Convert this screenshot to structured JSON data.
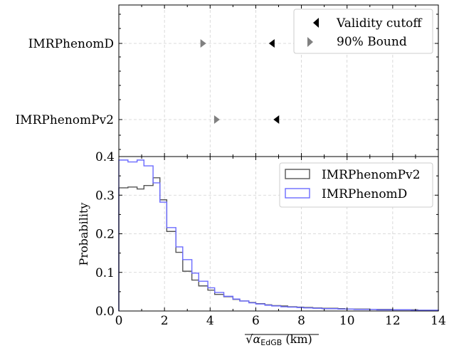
{
  "chart_data": [
    {
      "type": "scatter",
      "categories": [
        "IMRPhenomD",
        "IMRPhenomPv2"
      ],
      "series": [
        {
          "name": "Validity cutoff",
          "marker": "triangle-left",
          "color": "#000000",
          "values": [
            6.7,
            6.9
          ]
        },
        {
          "name": "90% Bound",
          "marker": "triangle-right",
          "color": "#808080",
          "values": [
            3.7,
            4.3
          ]
        }
      ],
      "xlim": [
        0,
        14
      ],
      "grid": true,
      "legend_position": "top-right"
    },
    {
      "type": "histogram",
      "xlabel_parts": {
        "root": "√",
        "symbol": "α",
        "subscript": "EdGB",
        "unit": " (km)"
      },
      "ylabel": "Probability",
      "xlim": [
        0,
        14
      ],
      "ylim": [
        0,
        0.4
      ],
      "xticks": [
        "0",
        "2",
        "4",
        "6",
        "8",
        "10",
        "12",
        "14"
      ],
      "yticks": [
        "0.0",
        "0.1",
        "0.2",
        "0.3",
        "0.4"
      ],
      "bin_edges": [
        0,
        0.4,
        0.8,
        1.1,
        1.5,
        1.8,
        2.1,
        2.5,
        2.8,
        3.2,
        3.5,
        3.9,
        4.2,
        4.6,
        5.0,
        5.3,
        5.7,
        6.0,
        6.4,
        6.7,
        7.1,
        7.4,
        7.8,
        8.1,
        8.5,
        8.9,
        9.2,
        9.6,
        9.9,
        10.3,
        10.6,
        11.0,
        11.3,
        11.7,
        12.0,
        12.4,
        12.8,
        13.1,
        13.5,
        13.8,
        14.0
      ],
      "series": [
        {
          "name": "IMRPhenomPv2",
          "color": "#555555",
          "values": [
            0.319,
            0.321,
            0.316,
            0.325,
            0.345,
            0.288,
            0.206,
            0.152,
            0.103,
            0.08,
            0.065,
            0.054,
            0.043,
            0.037,
            0.03,
            0.026,
            0.022,
            0.019,
            0.016,
            0.014,
            0.013,
            0.011,
            0.01,
            0.009,
            0.008,
            0.007,
            0.007,
            0.006,
            0.005,
            0.005,
            0.005,
            0.004,
            0.004,
            0.004,
            0.003,
            0.003,
            0.003,
            0.002,
            0.002,
            0.002
          ]
        },
        {
          "name": "IMRPhenomD",
          "color": "#6b6bff",
          "values": [
            0.391,
            0.386,
            0.391,
            0.376,
            0.332,
            0.282,
            0.216,
            0.166,
            0.133,
            0.098,
            0.077,
            0.06,
            0.048,
            0.038,
            0.031,
            0.026,
            0.021,
            0.018,
            0.015,
            0.013,
            0.011,
            0.01,
            0.009,
            0.008,
            0.007,
            0.006,
            0.006,
            0.005,
            0.005,
            0.004,
            0.004,
            0.004,
            0.003,
            0.003,
            0.003,
            0.003,
            0.002,
            0.002,
            0.002,
            0.002
          ]
        }
      ],
      "grid": true,
      "legend_position": "top-right"
    }
  ]
}
